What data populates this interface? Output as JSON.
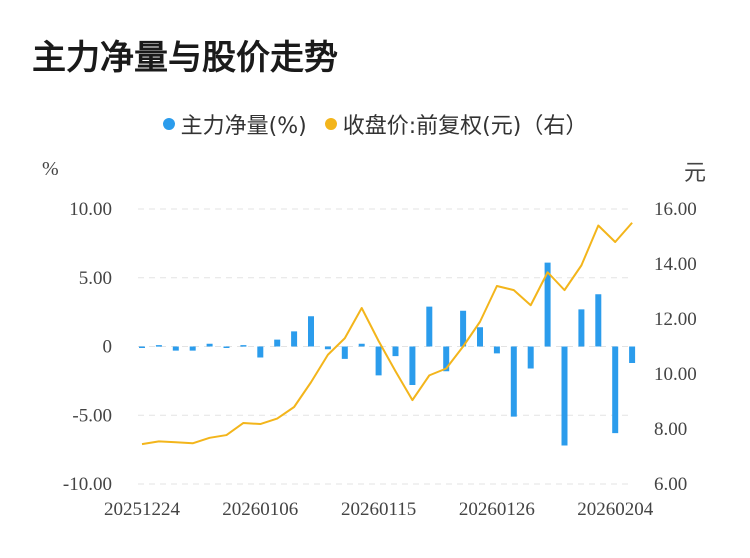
{
  "chart_data": {
    "type": "bar+line",
    "title": "主力净量与股价走势",
    "legend": {
      "position": "top-center",
      "items": [
        {
          "label": "主力净量(%)",
          "color": "#2b9cec"
        },
        {
          "label": "收盘价:前复权(元)（右）",
          "color": "#f3b51b"
        }
      ]
    },
    "left_unit": "%",
    "right_unit": "元",
    "y_left": {
      "min": -10,
      "max": 10,
      "ticks": [
        "10.00",
        "5.00",
        "0",
        "-5.00",
        "-10.00"
      ]
    },
    "y_right": {
      "min": 6,
      "max": 16,
      "ticks": [
        "16.00",
        "14.00",
        "12.00",
        "10.00",
        "8.00",
        "6.00"
      ]
    },
    "x_tick_labels": [
      {
        "index": 0,
        "label": "20251224"
      },
      {
        "index": 7,
        "label": "20260106"
      },
      {
        "index": 14,
        "label": "20260115"
      },
      {
        "index": 21,
        "label": "20260126"
      },
      {
        "index": 28,
        "label": "20260204"
      }
    ],
    "grid": true,
    "series": [
      {
        "name": "主力净量(%)",
        "type": "bar",
        "axis": "left",
        "color": "#2b9cec",
        "values": [
          -0.1,
          0.1,
          -0.3,
          -0.3,
          0.2,
          -0.1,
          0.1,
          -0.8,
          0.5,
          1.1,
          2.2,
          -0.2,
          -0.9,
          0.2,
          -2.1,
          -0.7,
          -2.8,
          2.9,
          -1.8,
          2.6,
          1.4,
          -0.5,
          -5.1,
          -1.6,
          6.1,
          -7.2,
          2.7,
          3.8,
          -6.3,
          -1.2
        ]
      },
      {
        "name": "收盘价:前复权(元)（右）",
        "type": "line",
        "axis": "right",
        "color": "#f3b51b",
        "values": [
          7.45,
          7.55,
          7.52,
          7.48,
          7.68,
          7.78,
          8.22,
          8.18,
          8.38,
          8.8,
          9.7,
          10.7,
          11.3,
          12.4,
          11.2,
          10.1,
          9.05,
          9.95,
          10.2,
          11.0,
          11.9,
          13.2,
          13.05,
          12.5,
          13.7,
          13.05,
          13.95,
          15.4,
          14.8,
          15.5
        ]
      }
    ]
  }
}
